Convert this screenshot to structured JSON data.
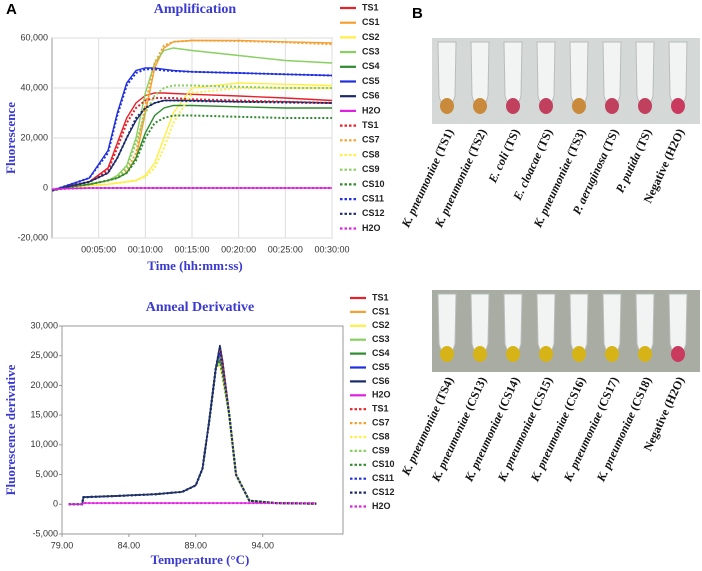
{
  "panel_labels": [
    "A",
    "B"
  ],
  "tube_labels_top": [
    "K. pneumoniae (TS1)",
    "K. pneumoniae (TS2)",
    "E. coli (TS)",
    "E. cloacae (TS)",
    "K. pneumoniae (TS3)",
    "P. aeruginosa (TS)",
    "P. putida (TS)",
    "Negative (H2O)"
  ],
  "tube_labels_bottom": [
    "K. pneumoniae (TS4)",
    "K. pneumoniae (CS13)",
    "K. pneumoniae (CS14)",
    "K. pneumoniae (CS15)",
    "K. pneumoniae (CS16)",
    "K. pneumoniae (CS17)",
    "K. pneumoniae (CS18)",
    "Negative (H2O)"
  ],
  "chart_data": [
    {
      "type": "line",
      "title": "Amplification",
      "x_label": "Time (hh:mm:ss)",
      "y_label": "Fluorescence",
      "grid": true,
      "legend": "right",
      "xlim": [
        0,
        30
      ],
      "ylim": [
        -20000,
        60000
      ],
      "xticks": [
        {
          "value": 5,
          "label": "00:05:00"
        },
        {
          "value": 10,
          "label": "00:10:00"
        },
        {
          "value": 15,
          "label": "00:15:00"
        },
        {
          "value": 20,
          "label": "00:20:00"
        },
        {
          "value": 25,
          "label": "00:25:00"
        },
        {
          "value": 30,
          "label": "00:30:00"
        }
      ],
      "yticks": [
        {
          "value": -20000,
          "label": "-20,000"
        },
        0,
        {
          "value": 20000,
          "label": "20,000"
        },
        {
          "value": 40000,
          "label": "40,000"
        },
        {
          "value": 60000,
          "label": "60,000"
        }
      ],
      "x": [
        0,
        2,
        4,
        6,
        7,
        8,
        9,
        10,
        11,
        12,
        13,
        15,
        20,
        25,
        30
      ],
      "series": [
        {
          "name": "TS1",
          "color": "#e8202a",
          "dash": false,
          "values": [
            -1000,
            1000,
            2500,
            8000,
            18000,
            28000,
            34000,
            37000,
            38000,
            38000,
            37800,
            37500,
            36800,
            36000,
            35000
          ]
        },
        {
          "name": "CS1",
          "color": "#f5a030",
          "dash": false,
          "values": [
            -1000,
            500,
            1500,
            3000,
            4000,
            6000,
            12000,
            30000,
            48000,
            56000,
            58500,
            59000,
            59000,
            58500,
            58000
          ]
        },
        {
          "name": "CS2",
          "color": "#ffee44",
          "dash": false,
          "values": [
            -1000,
            300,
            1000,
            1500,
            2000,
            2500,
            3000,
            5000,
            10000,
            20000,
            30000,
            40000,
            42000,
            41500,
            41000
          ]
        },
        {
          "name": "CS3",
          "color": "#88d060",
          "dash": false,
          "values": [
            -1000,
            500,
            1500,
            3000,
            5000,
            9000,
            20000,
            38000,
            50000,
            55000,
            56000,
            55000,
            53000,
            51000,
            50000
          ]
        },
        {
          "name": "CS4",
          "color": "#2e8b2e",
          "dash": false,
          "values": [
            -1000,
            500,
            1500,
            3000,
            4000,
            6000,
            12000,
            22000,
            29000,
            32000,
            33000,
            33000,
            32500,
            32000,
            32000
          ]
        },
        {
          "name": "CS5",
          "color": "#2030e0",
          "dash": false,
          "values": [
            -1000,
            1500,
            4000,
            15000,
            30000,
            42000,
            47000,
            48000,
            48000,
            47500,
            47000,
            46500,
            46000,
            45500,
            45000
          ]
        },
        {
          "name": "CS6",
          "color": "#1a2a6a",
          "dash": false,
          "values": [
            -1000,
            800,
            2500,
            6000,
            12000,
            20000,
            27000,
            32000,
            34000,
            35000,
            35000,
            35000,
            34500,
            34500,
            34000
          ]
        },
        {
          "name": "H2O",
          "color": "#e020e0",
          "dash": false,
          "values": [
            -500,
            -200,
            0,
            0,
            0,
            0,
            0,
            0,
            0,
            0,
            0,
            0,
            0,
            0,
            0
          ]
        },
        {
          "name": "TS1",
          "color": "#e8202a",
          "dash": true,
          "values": [
            -1000,
            1000,
            2500,
            7000,
            16000,
            26000,
            32000,
            35000,
            36000,
            36000,
            36000,
            35500,
            35000,
            34500,
            34000
          ]
        },
        {
          "name": "CS7",
          "color": "#f5a030",
          "dash": true,
          "values": [
            -1000,
            500,
            1500,
            3000,
            4500,
            7000,
            14000,
            33000,
            50000,
            57000,
            58500,
            59000,
            58800,
            58300,
            57500
          ]
        },
        {
          "name": "CS8",
          "color": "#ffee44",
          "dash": true,
          "values": [
            -1000,
            300,
            1000,
            1500,
            2000,
            2500,
            3000,
            4500,
            8000,
            16000,
            26000,
            38000,
            40000,
            40000,
            40000
          ]
        },
        {
          "name": "CS9",
          "color": "#88d060",
          "dash": true,
          "values": [
            -1000,
            500,
            1500,
            3000,
            4500,
            8000,
            18000,
            30000,
            37000,
            40000,
            41000,
            41000,
            40500,
            40000,
            40000
          ]
        },
        {
          "name": "CS10",
          "color": "#2e8b2e",
          "dash": true,
          "values": [
            -1000,
            500,
            1500,
            3000,
            4000,
            6000,
            11000,
            20000,
            26000,
            28000,
            29000,
            29000,
            28500,
            28000,
            28000
          ]
        },
        {
          "name": "CS11",
          "color": "#2030e0",
          "dash": true,
          "values": [
            -1000,
            1500,
            4000,
            14000,
            29000,
            41000,
            46000,
            47500,
            47500,
            47000,
            46800,
            46500,
            46000,
            45500,
            45000
          ]
        },
        {
          "name": "CS12",
          "color": "#1a2a6a",
          "dash": true,
          "values": [
            -1000,
            800,
            2500,
            6000,
            12000,
            20000,
            28000,
            32000,
            34000,
            35000,
            35000,
            34800,
            34500,
            34200,
            34000
          ]
        },
        {
          "name": "H2O",
          "color": "#e020e0",
          "dash": true,
          "values": [
            -500,
            -200,
            0,
            0,
            0,
            0,
            0,
            0,
            0,
            0,
            0,
            0,
            0,
            0,
            0
          ]
        }
      ]
    },
    {
      "type": "line",
      "title": "Anneal Derivative",
      "x_label": "Temperature (°C)",
      "y_label": "Fluorescence derivative",
      "grid": false,
      "legend": "right",
      "xlim": [
        79,
        100
      ],
      "ylim": [
        -5000,
        30000
      ],
      "xticks": [
        {
          "value": 79,
          "label": "79.00"
        },
        {
          "value": 84,
          "label": "84.00"
        },
        {
          "value": 89,
          "label": "89.00"
        },
        {
          "value": 94,
          "label": "94.00"
        }
      ],
      "yticks": [
        {
          "value": -5000,
          "label": "-5,000"
        },
        0,
        {
          "value": 5000,
          "label": "5,000"
        },
        {
          "value": 10000,
          "label": "10,000"
        },
        {
          "value": 15000,
          "label": "15,000"
        },
        {
          "value": 20000,
          "label": "20,000"
        },
        {
          "value": 25000,
          "label": "25,000"
        },
        {
          "value": 30000,
          "label": "30,000"
        }
      ],
      "x": [
        79.5,
        80.5,
        80.6,
        83,
        86,
        88,
        89,
        89.5,
        90,
        90.5,
        90.8,
        91,
        91.5,
        92,
        93,
        95,
        98
      ],
      "series": [
        {
          "name": "TS1",
          "color": "#e8202a",
          "dash": false,
          "values": [
            0,
            0,
            1200,
            1400,
            1700,
            2100,
            3200,
            6000,
            14000,
            23000,
            26500,
            23850,
            15000,
            5000,
            600,
            200,
            100
          ]
        },
        {
          "name": "CS1",
          "color": "#f5a030",
          "dash": false,
          "values": [
            0,
            0,
            1200,
            1400,
            1700,
            2100,
            3200,
            6000,
            14000,
            23000,
            25500,
            22950,
            15000,
            5000,
            600,
            200,
            100
          ]
        },
        {
          "name": "CS2",
          "color": "#ffee44",
          "dash": false,
          "values": [
            0,
            0,
            1200,
            1400,
            1700,
            2100,
            3200,
            6000,
            14000,
            23000,
            24000,
            21600,
            15000,
            5000,
            600,
            200,
            100
          ]
        },
        {
          "name": "CS3",
          "color": "#88d060",
          "dash": false,
          "values": [
            0,
            0,
            1200,
            1400,
            1700,
            2100,
            3200,
            6000,
            14000,
            23000,
            25000,
            22500,
            15000,
            5000,
            600,
            200,
            100
          ]
        },
        {
          "name": "CS4",
          "color": "#2e8b2e",
          "dash": false,
          "values": [
            0,
            0,
            1200,
            1400,
            1700,
            2100,
            3200,
            6000,
            14000,
            23000,
            24500,
            22050,
            15000,
            5000,
            600,
            200,
            100
          ]
        },
        {
          "name": "CS5",
          "color": "#2030e0",
          "dash": false,
          "values": [
            0,
            0,
            1200,
            1400,
            1700,
            2100,
            3200,
            6000,
            14000,
            23000,
            26000,
            23400,
            15000,
            5000,
            600,
            200,
            100
          ]
        },
        {
          "name": "CS6",
          "color": "#1a2a6a",
          "dash": false,
          "values": [
            0,
            0,
            1200,
            1400,
            1700,
            2100,
            3200,
            6000,
            14000,
            23000,
            26800,
            24120,
            15000,
            5000,
            600,
            200,
            100
          ]
        },
        {
          "name": "H2O",
          "color": "#e020e0",
          "dash": false,
          "values": [
            0,
            0,
            200,
            200,
            200,
            200,
            200,
            200,
            200,
            200,
            200,
            200,
            200,
            200,
            200,
            200,
            200
          ]
        },
        {
          "name": "TS1",
          "color": "#e8202a",
          "dash": true,
          "values": [
            0,
            0,
            1200,
            1400,
            1700,
            2100,
            3200,
            6000,
            14000,
            23000,
            26000,
            23400,
            15000,
            5000,
            600,
            200,
            100
          ]
        },
        {
          "name": "CS7",
          "color": "#f5a030",
          "dash": true,
          "values": [
            0,
            0,
            1200,
            1400,
            1700,
            2100,
            3200,
            6000,
            14000,
            23000,
            25800,
            23220,
            15000,
            5000,
            600,
            200,
            100
          ]
        },
        {
          "name": "CS8",
          "color": "#ffee44",
          "dash": true,
          "values": [
            0,
            0,
            1200,
            1400,
            1700,
            2100,
            3200,
            6000,
            14000,
            23000,
            23500,
            21150,
            15000,
            5000,
            600,
            200,
            100
          ]
        },
        {
          "name": "CS9",
          "color": "#88d060",
          "dash": true,
          "values": [
            0,
            0,
            1200,
            1400,
            1700,
            2100,
            3200,
            6000,
            14000,
            23000,
            24800,
            22320,
            15000,
            5000,
            600,
            200,
            100
          ]
        },
        {
          "name": "CS10",
          "color": "#2e8b2e",
          "dash": true,
          "values": [
            0,
            0,
            1200,
            1400,
            1700,
            2100,
            3200,
            6000,
            14000,
            23000,
            24000,
            21600,
            15000,
            5000,
            600,
            200,
            100
          ]
        },
        {
          "name": "CS11",
          "color": "#2030e0",
          "dash": true,
          "values": [
            0,
            0,
            1200,
            1400,
            1700,
            2100,
            3200,
            6000,
            14000,
            23000,
            25500,
            22950,
            15000,
            5000,
            600,
            200,
            100
          ]
        },
        {
          "name": "CS12",
          "color": "#1a2a6a",
          "dash": true,
          "values": [
            0,
            0,
            1200,
            1400,
            1700,
            2100,
            3200,
            6000,
            14000,
            23000,
            26500,
            23850,
            15000,
            5000,
            600,
            200,
            100
          ]
        },
        {
          "name": "H2O",
          "color": "#e020e0",
          "dash": true,
          "values": [
            0,
            0,
            200,
            200,
            200,
            200,
            200,
            200,
            200,
            200,
            200,
            200,
            200,
            200,
            200,
            200,
            200
          ]
        }
      ]
    }
  ]
}
